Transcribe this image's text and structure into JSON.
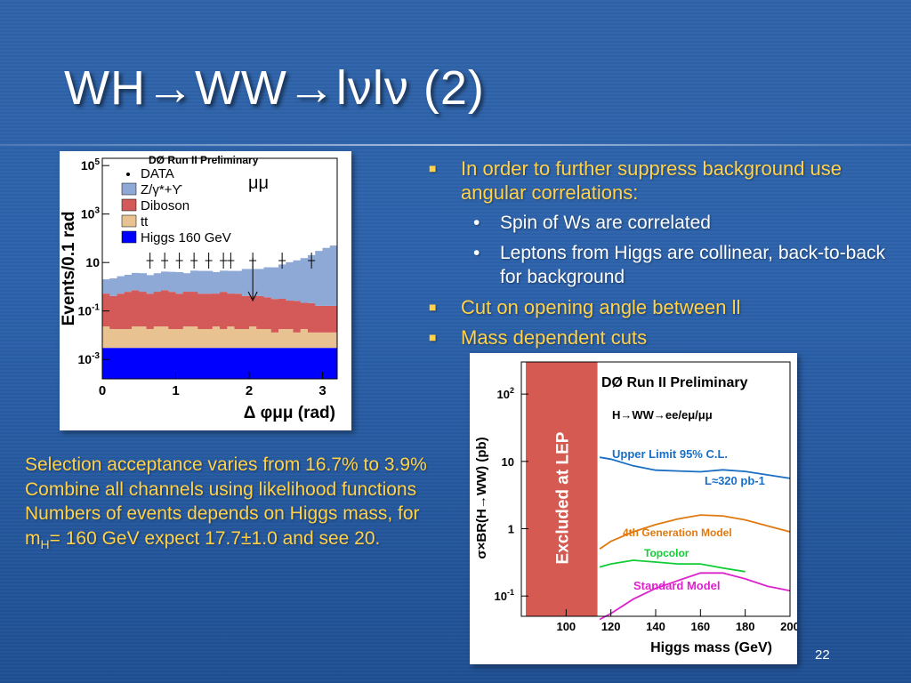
{
  "slide": {
    "title": "WH→WW→lνlν (2)",
    "page_number": "22",
    "bullets": [
      {
        "text": "In order to further suppress background use angular correlations:",
        "subs": [
          "Spin of Ws are correlated",
          "Leptons from Higgs are collinear, back-to-back for background"
        ]
      },
      {
        "text": "Cut on opening angle between ll",
        "subs": []
      },
      {
        "text": "Mass dependent cuts",
        "subs": []
      }
    ],
    "notes": [
      "Selection acceptance varies from 16.7% to 3.9%",
      "Combine all channels using likelihood functions",
      "Numbers of events depends on Higgs mass, for m",
      "H",
      "= 160 GeV expect 17.7±1.0 and see 20."
    ],
    "bullet_color": "#ffd24a",
    "text_color": "#ffffff"
  },
  "chart_data": [
    {
      "type": "bar",
      "title": "DØ Run II Preliminary",
      "channel_label": "μμ",
      "xlabel": "Δ φμμ (rad)",
      "ylabel": "Events/0.1 rad",
      "ylog": true,
      "xlim": [
        0,
        3.2
      ],
      "xticks": [
        "0",
        "1",
        "2",
        "3"
      ],
      "yticks": [
        "10-3",
        "10-1",
        "10",
        "103",
        "105"
      ],
      "legend": [
        "DATA",
        "Z/γ*+ϒ",
        "Diboson",
        "tt",
        "Higgs 160 GeV"
      ],
      "colors": {
        "zg": "#8fa9d6",
        "diboson": "#d45a5a",
        "tt": "#e8c290",
        "higgs": "#0000ff"
      },
      "x": [
        0.05,
        0.15,
        0.25,
        0.35,
        0.45,
        0.55,
        0.65,
        0.75,
        0.85,
        0.95,
        1.05,
        1.15,
        1.25,
        1.35,
        1.45,
        1.55,
        1.65,
        1.75,
        1.85,
        1.95,
        2.05,
        2.15,
        2.25,
        2.35,
        2.45,
        2.55,
        2.65,
        2.75,
        2.85,
        2.95,
        3.05,
        3.15
      ],
      "series": [
        {
          "name": "Higgs 160 GeV",
          "values": [
            0.003,
            0.003,
            0.003,
            0.003,
            0.003,
            0.003,
            0.003,
            0.003,
            0.003,
            0.003,
            0.003,
            0.003,
            0.003,
            0.003,
            0.003,
            0.003,
            0.003,
            0.003,
            0.003,
            0.003,
            0.003,
            0.003,
            0.003,
            0.003,
            0.003,
            0.003,
            0.003,
            0.003,
            0.003,
            0.003,
            0.003,
            0.003
          ]
        },
        {
          "name": "tt",
          "values": [
            0.02,
            0.015,
            0.015,
            0.015,
            0.02,
            0.02,
            0.015,
            0.02,
            0.02,
            0.015,
            0.015,
            0.02,
            0.02,
            0.015,
            0.015,
            0.02,
            0.015,
            0.02,
            0.015,
            0.015,
            0.02,
            0.015,
            0.015,
            0.01,
            0.015,
            0.015,
            0.01,
            0.015,
            0.01,
            0.01,
            0.01,
            0.01
          ]
        },
        {
          "name": "Diboson",
          "values": [
            0.5,
            0.4,
            0.5,
            0.6,
            0.7,
            0.6,
            0.5,
            0.6,
            0.7,
            0.6,
            0.5,
            0.6,
            0.6,
            0.5,
            0.5,
            0.5,
            0.6,
            0.5,
            0.5,
            0.4,
            0.4,
            0.4,
            0.35,
            0.3,
            0.3,
            0.25,
            0.25,
            0.2,
            0.2,
            0.15,
            0.15,
            0.15
          ]
        },
        {
          "name": "Z/γ*+ϒ",
          "values": [
            1.5,
            1.8,
            2.2,
            2.5,
            3,
            3,
            2.5,
            3,
            3.5,
            3.5,
            3.5,
            3,
            4,
            4,
            4,
            3.5,
            4,
            4,
            4,
            5,
            5,
            5,
            6,
            6,
            8,
            10,
            12,
            15,
            20,
            30,
            40,
            50
          ]
        },
        {
          "name": "DATA",
          "values": [
            0,
            0,
            0,
            0,
            0,
            0,
            3,
            0,
            3,
            0,
            3,
            0,
            3,
            0,
            3,
            0,
            3,
            3,
            0,
            0,
            3,
            0,
            0,
            0,
            3,
            0,
            0,
            0,
            3,
            0,
            0,
            0
          ]
        }
      ]
    },
    {
      "type": "line",
      "title": "DØ Run II Preliminary",
      "process_label": "H→WW→ee/eμ/μμ",
      "luminosity_label": "L≈320 pb-1",
      "excluded_label": "Excluded at LEP",
      "xlabel": "Higgs mass (GeV)",
      "ylabel": "σ×BR(H→WW) (pb)",
      "ylog": true,
      "xlim": [
        80,
        200
      ],
      "ylim": [
        0.05,
        300
      ],
      "xticks": [
        "100",
        "120",
        "140",
        "160",
        "180",
        "200"
      ],
      "yticks": [
        "10-1",
        "1",
        "10",
        "102"
      ],
      "excluded_range": [
        82,
        114
      ],
      "series": [
        {
          "name": "Upper Limit 95% C.L.",
          "color": "#1a6fc4",
          "x": [
            115,
            120,
            130,
            140,
            150,
            160,
            170,
            180,
            190,
            200
          ],
          "values": [
            11.5,
            10.8,
            8.6,
            7.4,
            7.2,
            7,
            7.5,
            7.1,
            6.3,
            5.6
          ]
        },
        {
          "name": "4th Generation Model",
          "color": "#e07a10",
          "x": [
            115,
            120,
            130,
            140,
            150,
            160,
            170,
            180,
            190,
            200
          ],
          "values": [
            0.5,
            0.65,
            0.9,
            1.15,
            1.4,
            1.6,
            1.55,
            1.35,
            1.1,
            0.9
          ]
        },
        {
          "name": "Topcolor",
          "color": "#11cc33",
          "x": [
            115,
            120,
            130,
            140,
            150,
            160,
            170,
            180
          ],
          "values": [
            0.27,
            0.3,
            0.34,
            0.32,
            0.3,
            0.3,
            0.26,
            0.23
          ]
        },
        {
          "name": "Standard Model",
          "color": "#dd22cc",
          "x": [
            115,
            120,
            130,
            140,
            150,
            160,
            170,
            180,
            190,
            200
          ],
          "values": [
            0.045,
            0.055,
            0.09,
            0.13,
            0.17,
            0.22,
            0.22,
            0.18,
            0.14,
            0.12
          ]
        }
      ]
    }
  ]
}
